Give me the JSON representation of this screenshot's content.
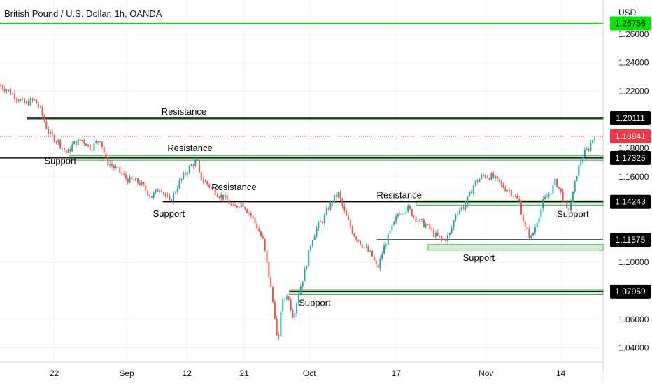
{
  "chart_data": {
    "type": "candlestick",
    "title": "British Pound / U.S. Dollar, 1h, OANDA",
    "currency": "USD",
    "ylim": [
      1.03,
      1.284
    ],
    "y_ticks": [
      "1.26000",
      "1.24000",
      "1.22000",
      "1.18000",
      "1.16000",
      "1.10000",
      "1.06000",
      "1.04000"
    ],
    "x_ticks": [
      {
        "label": "22",
        "t": 0.09
      },
      {
        "label": "Sep",
        "t": 0.21
      },
      {
        "label": "12",
        "t": 0.31
      },
      {
        "label": "21",
        "t": 0.405
      },
      {
        "label": "Oct",
        "t": 0.513
      },
      {
        "label": "17",
        "t": 0.657
      },
      {
        "label": "Nov",
        "t": 0.806
      },
      {
        "label": "14",
        "t": 0.93
      }
    ],
    "colors": {
      "up": "#26a69a",
      "down": "#ef5350",
      "zone_fill": "#c8e6c9",
      "zone_stroke": "#4caf50",
      "alert_line": "#00e600",
      "current_price": "#f23645"
    },
    "price_path": [
      [
        0.0,
        1.224
      ],
      [
        0.02,
        1.218
      ],
      [
        0.04,
        1.211
      ],
      [
        0.055,
        1.214
      ],
      [
        0.065,
        1.208
      ],
      [
        0.08,
        1.19
      ],
      [
        0.095,
        1.185
      ],
      [
        0.11,
        1.176
      ],
      [
        0.12,
        1.183
      ],
      [
        0.135,
        1.186
      ],
      [
        0.15,
        1.18
      ],
      [
        0.165,
        1.187
      ],
      [
        0.175,
        1.171
      ],
      [
        0.19,
        1.166
      ],
      [
        0.21,
        1.158
      ],
      [
        0.23,
        1.156
      ],
      [
        0.25,
        1.146
      ],
      [
        0.265,
        1.153
      ],
      [
        0.28,
        1.142
      ],
      [
        0.295,
        1.155
      ],
      [
        0.31,
        1.165
      ],
      [
        0.325,
        1.172
      ],
      [
        0.33,
        1.16
      ],
      [
        0.345,
        1.154
      ],
      [
        0.36,
        1.148
      ],
      [
        0.375,
        1.144
      ],
      [
        0.385,
        1.138
      ],
      [
        0.4,
        1.142
      ],
      [
        0.415,
        1.133
      ],
      [
        0.425,
        1.125
      ],
      [
        0.435,
        1.115
      ],
      [
        0.445,
        1.09
      ],
      [
        0.455,
        1.062
      ],
      [
        0.46,
        1.038
      ],
      [
        0.465,
        1.07
      ],
      [
        0.475,
        1.078
      ],
      [
        0.485,
        1.062
      ],
      [
        0.495,
        1.08
      ],
      [
        0.505,
        1.095
      ],
      [
        0.515,
        1.115
      ],
      [
        0.525,
        1.125
      ],
      [
        0.535,
        1.13
      ],
      [
        0.545,
        1.14
      ],
      [
        0.555,
        1.146
      ],
      [
        0.56,
        1.148
      ],
      [
        0.57,
        1.135
      ],
      [
        0.585,
        1.12
      ],
      [
        0.6,
        1.112
      ],
      [
        0.615,
        1.105
      ],
      [
        0.625,
        1.095
      ],
      [
        0.635,
        1.11
      ],
      [
        0.65,
        1.125
      ],
      [
        0.66,
        1.135
      ],
      [
        0.675,
        1.138
      ],
      [
        0.69,
        1.13
      ],
      [
        0.705,
        1.126
      ],
      [
        0.72,
        1.119
      ],
      [
        0.735,
        1.115
      ],
      [
        0.745,
        1.12
      ],
      [
        0.755,
        1.135
      ],
      [
        0.77,
        1.14
      ],
      [
        0.785,
        1.155
      ],
      [
        0.8,
        1.161
      ],
      [
        0.815,
        1.16
      ],
      [
        0.83,
        1.154
      ],
      [
        0.845,
        1.15
      ],
      [
        0.86,
        1.142
      ],
      [
        0.87,
        1.123
      ],
      [
        0.88,
        1.117
      ],
      [
        0.89,
        1.13
      ],
      [
        0.9,
        1.143
      ],
      [
        0.91,
        1.148
      ],
      [
        0.92,
        1.157
      ],
      [
        0.93,
        1.148
      ],
      [
        0.94,
        1.134
      ],
      [
        0.95,
        1.15
      ],
      [
        0.955,
        1.162
      ],
      [
        0.965,
        1.175
      ],
      [
        0.975,
        1.18
      ],
      [
        0.985,
        1.19
      ],
      [
        0.99,
        1.2
      ],
      [
        0.995,
        1.193
      ],
      [
        1.0,
        1.1884
      ]
    ],
    "zones": [
      {
        "from": 0.045,
        "to": 1.0,
        "y_low": 1.2003,
        "y_high": 1.2013
      },
      {
        "from": 0.115,
        "to": 1.0,
        "y_low": 1.1716,
        "y_high": 1.175
      },
      {
        "from": 0.69,
        "to": 1.0,
        "y_low": 1.14,
        "y_high": 1.1432
      },
      {
        "from": 0.71,
        "to": 1.0,
        "y_low": 1.1085,
        "y_high": 1.1125
      },
      {
        "from": 0.48,
        "to": 1.0,
        "y_low": 1.0773,
        "y_high": 1.0805
      }
    ],
    "horizontal_lines": [
      {
        "value": 1.17325,
        "from": 0.0,
        "to": 1.0
      },
      {
        "value": 1.14243,
        "from": 0.27,
        "to": 1.0
      },
      {
        "value": 1.11575,
        "from": 0.625,
        "to": 1.0
      },
      {
        "value": 1.07959,
        "from": 0.48,
        "to": 1.0
      },
      {
        "value": 1.20111,
        "from": 0.045,
        "to": 1.0
      }
    ],
    "alert_line": {
      "value": 1.26756
    },
    "current_price": {
      "value": 1.18841
    },
    "price_tags": [
      {
        "label": "1.26756",
        "value": 1.26756,
        "style": "green"
      },
      {
        "label": "1.20111",
        "value": 1.20111,
        "style": "black"
      },
      {
        "label": "1.18841",
        "value": 1.18841,
        "style": "red"
      },
      {
        "label": "1.17325",
        "value": 1.17325,
        "style": "black"
      },
      {
        "label": "1.14243",
        "value": 1.14243,
        "style": "black"
      },
      {
        "label": "1.11575",
        "value": 1.11575,
        "style": "black"
      },
      {
        "label": "1.07959",
        "value": 1.07959,
        "style": "black"
      }
    ],
    "annotations": [
      {
        "text": "Resistance",
        "t": 0.305,
        "y": 1.2036
      },
      {
        "text": "Resistance",
        "t": 0.315,
        "y": 1.1782
      },
      {
        "text": "Resistance",
        "t": 0.388,
        "y": 1.1506
      },
      {
        "text": "Resistance",
        "t": 0.662,
        "y": 1.145
      },
      {
        "text": "Support",
        "t": 0.1,
        "y": 1.169
      },
      {
        "text": "Support",
        "t": 0.28,
        "y": 1.132
      },
      {
        "text": "Support",
        "t": 0.522,
        "y": 1.0695
      },
      {
        "text": "Support",
        "t": 0.794,
        "y": 1.101
      },
      {
        "text": "Support",
        "t": 0.95,
        "y": 1.1318
      }
    ]
  }
}
